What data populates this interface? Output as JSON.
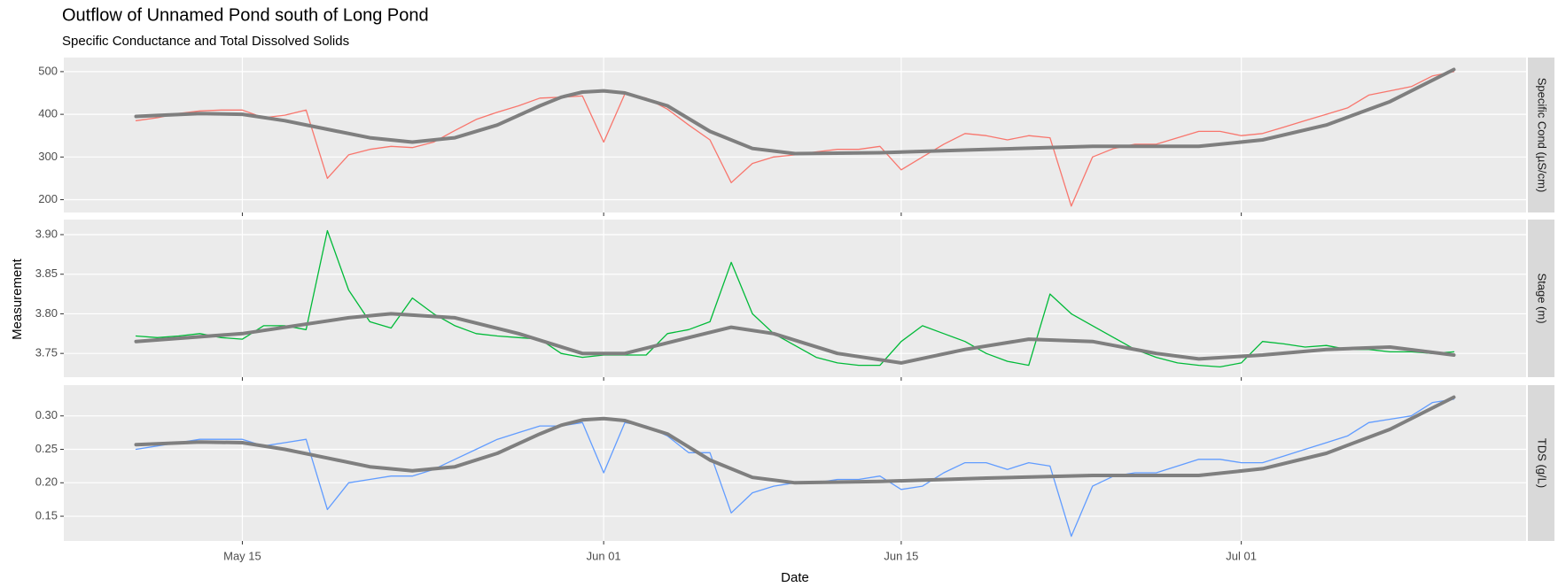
{
  "chart_data": {
    "type": "line",
    "title": "Outflow of Unnamed Pond south of Long Pond",
    "subtitle": "Specific Conductance and Total Dissolved Solids",
    "x_label": "Date",
    "y_label": "Measurement",
    "grid": true,
    "xlim": [
      126.6,
      195.4
    ],
    "xticks": [
      {
        "value": 135,
        "label": "May 15"
      },
      {
        "value": 152,
        "label": "Jun 01"
      },
      {
        "value": 166,
        "label": "Jun 15"
      },
      {
        "value": 182,
        "label": "Jul 01"
      }
    ],
    "x": [
      130,
      131,
      132,
      133,
      134,
      135,
      136,
      137,
      138,
      139,
      140,
      141,
      142,
      143,
      144,
      145,
      146,
      147,
      148,
      149,
      150,
      151,
      152,
      153,
      154,
      155,
      156,
      157,
      158,
      159,
      160,
      161,
      162,
      163,
      164,
      165,
      166,
      167,
      168,
      169,
      170,
      171,
      172,
      173,
      174,
      175,
      176,
      177,
      178,
      179,
      180,
      181,
      182,
      183,
      184,
      185,
      186,
      187,
      188,
      189,
      190,
      191,
      192
    ],
    "panels": [
      {
        "label": "Specific Cond (µS/cm)",
        "ylim": [
          170,
          533
        ],
        "yticks": [
          200,
          300,
          400,
          500
        ],
        "series": [
          {
            "color": "#F8766D",
            "values": [
              385,
              392,
              402,
              408,
              410,
              410,
              392,
              398,
              410,
              250,
              305,
              318,
              325,
              322,
              335,
              362,
              388,
              405,
              420,
              438,
              440,
              443,
              335,
              448,
              438,
              412,
              375,
              340,
              240,
              285,
              300,
              305,
              312,
              318,
              318,
              325,
              270,
              300,
              330,
              355,
              350,
              340,
              350,
              345,
              185,
              300,
              320,
              330,
              330,
              345,
              360,
              360,
              350,
              355,
              370,
              385,
              400,
              415,
              445,
              455,
              465,
              490,
              500
            ]
          },
          {
            "color": "#7f7f7f",
            "x": [
              130,
              133,
              135,
              137,
              139,
              141,
              143,
              145,
              147,
              149,
              150,
              151,
              152,
              153,
              155,
              157,
              159,
              161,
              165,
              170,
              175,
              180,
              183,
              186,
              189,
              192
            ],
            "values": [
              395,
              402,
              400,
              385,
              365,
              345,
              335,
              345,
              375,
              420,
              440,
              452,
              455,
              450,
              420,
              360,
              320,
              308,
              310,
              318,
              325,
              325,
              340,
              375,
              430,
              505
            ]
          }
        ]
      },
      {
        "label": "Stage (m)",
        "ylim": [
          3.72,
          3.919
        ],
        "yticks": [
          3.75,
          {
            "value": 3.8,
            "label": "3.80"
          },
          3.85,
          {
            "value": 3.9,
            "label": "3.90"
          }
        ],
        "series": [
          {
            "color": "#00BA38",
            "values": [
              3.772,
              3.77,
              3.772,
              3.775,
              3.77,
              3.768,
              3.785,
              3.785,
              3.78,
              3.905,
              3.83,
              3.79,
              3.782,
              3.82,
              3.8,
              3.785,
              3.775,
              3.772,
              3.77,
              3.768,
              3.75,
              3.745,
              3.748,
              3.748,
              3.748,
              3.775,
              3.78,
              3.79,
              3.865,
              3.8,
              3.775,
              3.76,
              3.745,
              3.738,
              3.735,
              3.735,
              3.765,
              3.785,
              3.775,
              3.765,
              3.75,
              3.74,
              3.735,
              3.825,
              3.8,
              3.785,
              3.77,
              3.755,
              3.745,
              3.738,
              3.735,
              3.733,
              3.738,
              3.765,
              3.762,
              3.758,
              3.76,
              3.755,
              3.755,
              3.752,
              3.752,
              3.75,
              3.752
            ]
          },
          {
            "color": "#7f7f7f",
            "x": [
              130,
              135,
              140,
              142,
              145,
              148,
              151,
              153,
              156,
              158,
              160,
              163,
              166,
              169,
              172,
              175,
              178,
              180,
              183,
              186,
              189,
              192
            ],
            "values": [
              3.765,
              3.775,
              3.795,
              3.8,
              3.795,
              3.775,
              3.75,
              3.75,
              3.77,
              3.783,
              3.775,
              3.75,
              3.738,
              3.755,
              3.768,
              3.765,
              3.75,
              3.743,
              3.748,
              3.755,
              3.758,
              3.748
            ]
          }
        ]
      },
      {
        "label": "TDS (g/L)",
        "ylim": [
          0.113,
          0.346
        ],
        "yticks": [
          0.15,
          {
            "value": 0.2,
            "label": "0.20"
          },
          0.25,
          {
            "value": 0.3,
            "label": "0.30"
          }
        ],
        "series": [
          {
            "color": "#619CFF",
            "values": [
              0.25,
              0.255,
              0.26,
              0.265,
              0.265,
              0.265,
              0.255,
              0.26,
              0.265,
              0.16,
              0.2,
              0.205,
              0.21,
              0.21,
              0.22,
              0.235,
              0.25,
              0.265,
              0.275,
              0.285,
              0.285,
              0.29,
              0.215,
              0.29,
              0.285,
              0.27,
              0.245,
              0.245,
              0.155,
              0.185,
              0.195,
              0.2,
              0.2,
              0.205,
              0.205,
              0.21,
              0.19,
              0.195,
              0.215,
              0.23,
              0.23,
              0.22,
              0.23,
              0.225,
              0.12,
              0.195,
              0.21,
              0.215,
              0.215,
              0.225,
              0.235,
              0.235,
              0.23,
              0.23,
              0.24,
              0.25,
              0.26,
              0.27,
              0.29,
              0.295,
              0.3,
              0.32,
              0.325
            ]
          },
          {
            "color": "#7f7f7f",
            "x": [
              130,
              133,
              135,
              137,
              139,
              141,
              143,
              145,
              147,
              149,
              150,
              151,
              152,
              153,
              155,
              157,
              159,
              161,
              165,
              170,
              175,
              180,
              183,
              186,
              189,
              192
            ],
            "values": [
              0.257,
              0.261,
              0.26,
              0.25,
              0.237,
              0.224,
              0.218,
              0.224,
              0.244,
              0.273,
              0.286,
              0.294,
              0.296,
              0.293,
              0.273,
              0.234,
              0.208,
              0.2,
              0.202,
              0.207,
              0.211,
              0.211,
              0.221,
              0.244,
              0.28,
              0.328
            ]
          }
        ]
      }
    ]
  }
}
